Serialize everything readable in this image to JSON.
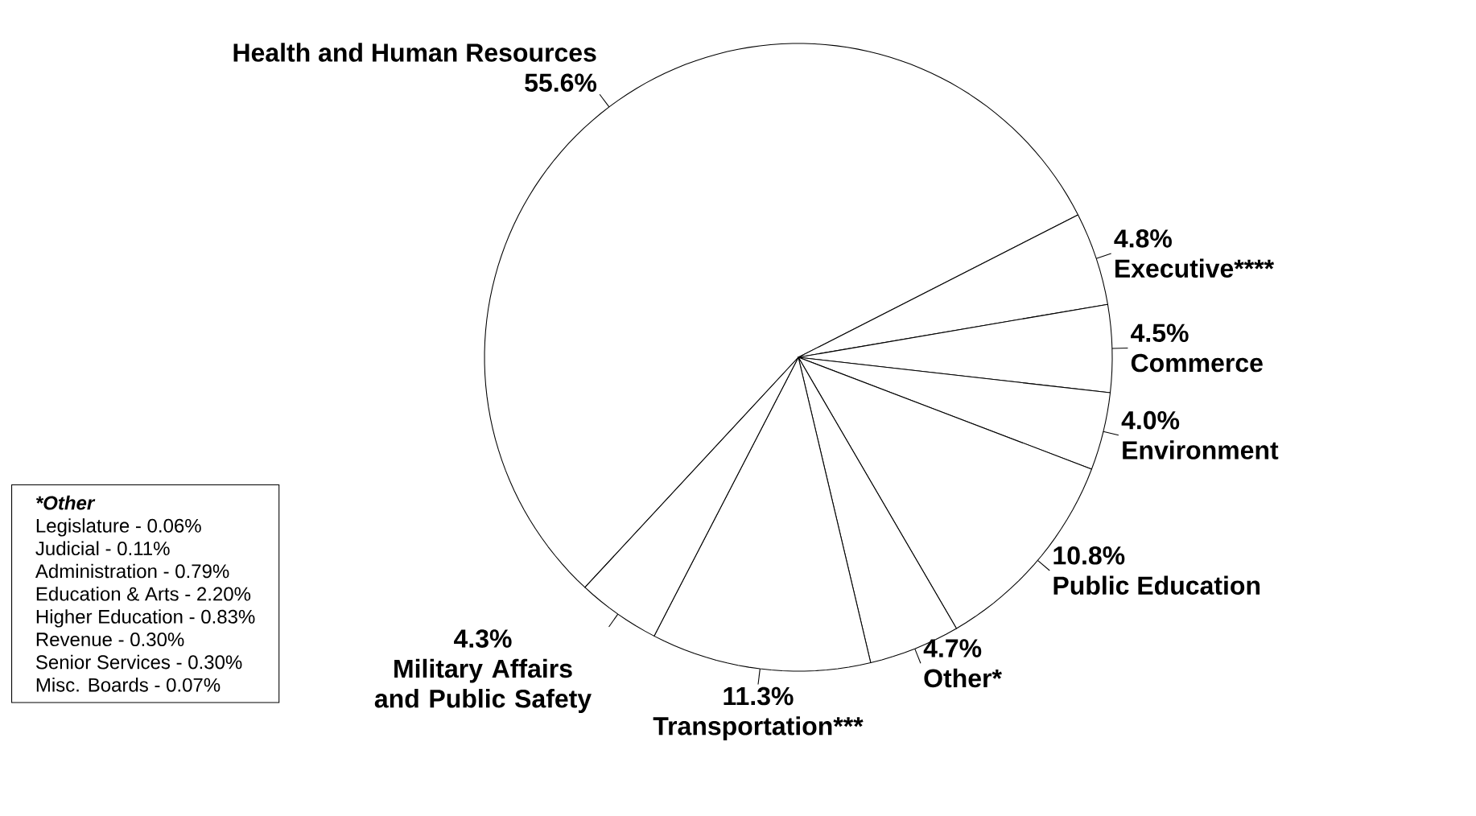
{
  "chart_data": {
    "type": "pie",
    "categories": [
      "Health and Human Resources",
      "Executive****",
      "Commerce",
      "Environment",
      "Public Education",
      "Other*",
      "Transportation***",
      "Military Affairs and Public Safety"
    ],
    "values": [
      55.6,
      4.8,
      4.5,
      4.0,
      10.8,
      4.7,
      11.3,
      4.3
    ],
    "value_labels": [
      "55.6%",
      "4.8%",
      "4.5%",
      "4.0%",
      "10.8%",
      "4.7%",
      "11.3%",
      "4.3%"
    ],
    "colors": [
      "#ffffff",
      "#ffffff",
      "#ffffff",
      "#ffffff",
      "#ffffff",
      "#ffffff",
      "#ffffff",
      "#ffffff"
    ],
    "annotations": [
      "*Other",
      "Legislature - 0.06%",
      "Judicial - 0.11%",
      "Administration - 0.79%",
      "Education & Arts - 2.20%",
      "Higher Education - 0.83%",
      "Revenue - 0.30%",
      "Senior Services - 0.30%",
      "Misc. Boards - 0.07%"
    ]
  }
}
